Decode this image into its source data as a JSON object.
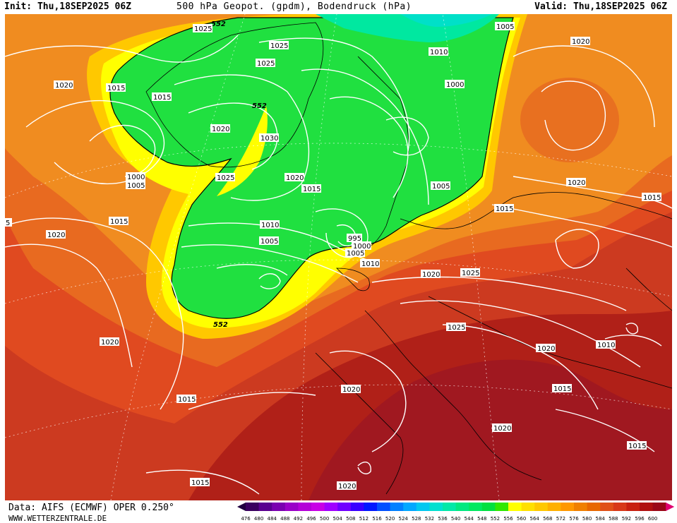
{
  "header": {
    "init": "Init: Thu,18SEP2025 06Z",
    "title": "500 hPa Geopot. (gpdm), Bodendruck (hPa)",
    "valid": "Valid: Thu,18SEP2025 06Z"
  },
  "footer": {
    "source": "Data: AIFS (ECMWF) OPER 0.250°",
    "site": "WWW.WETTERZENTRALE.DE"
  },
  "scale": {
    "values": [
      "476",
      "480",
      "484",
      "488",
      "492",
      "496",
      "500",
      "504",
      "508",
      "512",
      "516",
      "520",
      "524",
      "528",
      "532",
      "536",
      "540",
      "544",
      "548",
      "552",
      "556",
      "560",
      "564",
      "568",
      "572",
      "576",
      "580",
      "584",
      "588",
      "592",
      "596",
      "600"
    ],
    "colors": [
      "#3a0060",
      "#5a0090",
      "#7a00b0",
      "#9a00c8",
      "#b400d8",
      "#c800e6",
      "#a000ff",
      "#7000ff",
      "#3800ff",
      "#0018ff",
      "#0050ff",
      "#0080ff",
      "#00a8ff",
      "#00c8f0",
      "#00e0d0",
      "#00e8a8",
      "#00e880",
      "#00e860",
      "#00e040",
      "#30e800",
      "#ffff00",
      "#ffe000",
      "#ffc800",
      "#ffb000",
      "#ff9800",
      "#f08000",
      "#e86800",
      "#e05018",
      "#d83818",
      "#c82010",
      "#b01010",
      "#9a0818"
    ],
    "extra_left_color": "#200040",
    "extra_right_color": "#e00070"
  },
  "map": {
    "colors": {
      "green": "#20e040",
      "green_dark": "#18d838",
      "cyan": "#00e0c0",
      "yellow": "#ffff00",
      "gold": "#ffd000",
      "orange": "#f09020",
      "orange_dark": "#e87020",
      "red_orange": "#e05020",
      "red": "#c83020",
      "dark_red": "#b02018",
      "crimson": "#a01820"
    },
    "geopot_labels": [
      "552",
      "552",
      "552"
    ],
    "pressure_labels": [
      "1025",
      "1025",
      "1025",
      "1010",
      "1020",
      "1015",
      "1000",
      "1005",
      "1015",
      "1020",
      "1030",
      "1025",
      "1020",
      "1015",
      "1010",
      "1005",
      "1000",
      "995",
      "1005",
      "1010",
      "1020",
      "1025",
      "1005",
      "1010",
      "1000",
      "1005",
      "1020",
      "1020",
      "1015",
      "1015",
      "1020",
      "1020",
      "1025",
      "1020",
      "1010",
      "1015",
      "1020",
      "1015",
      "1020",
      "1015",
      "1020",
      "1015",
      "5"
    ]
  }
}
